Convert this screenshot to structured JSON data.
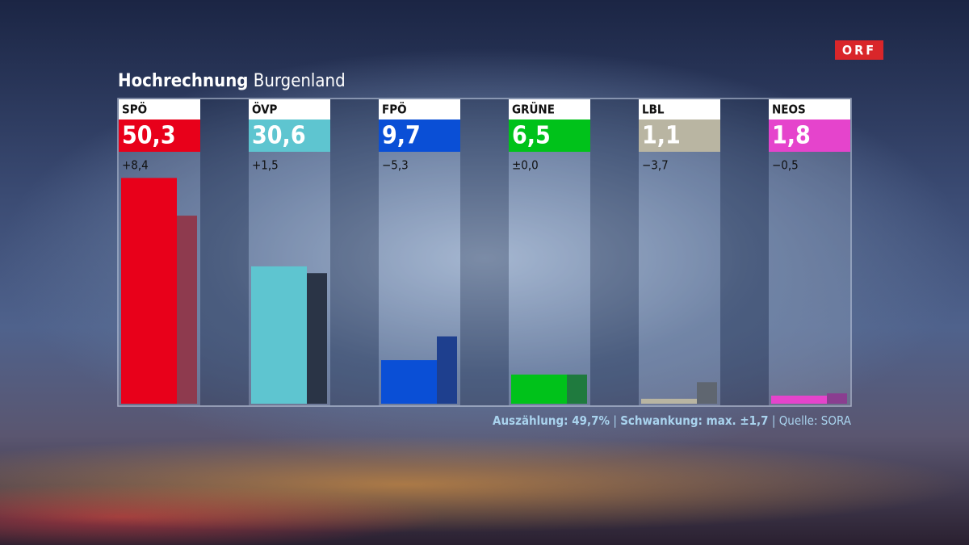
{
  "chart_data": {
    "type": "bar",
    "title": "Hochrechnung",
    "subtitle": "Burgenland",
    "logo": "ORF",
    "categories": [
      "SPÖ",
      "ÖVP",
      "FPÖ",
      "GRÜNE",
      "LBL",
      "NEOS"
    ],
    "values": [
      50.3,
      30.6,
      9.7,
      6.5,
      1.1,
      1.8
    ],
    "value_labels": [
      "50,3",
      "30,6",
      "9,7",
      "6,5",
      "1,1",
      "1,8"
    ],
    "previous_values": [
      41.9,
      29.1,
      15.0,
      6.5,
      4.8,
      2.3
    ],
    "change_labels": [
      "+8,4",
      "+1,5",
      "−5,3",
      "±0,0",
      "−3,7",
      "−0,5"
    ],
    "colors": [
      "#e8001a",
      "#5ec5d0",
      "#0a4fd6",
      "#00c21a",
      "#b9b5a2",
      "#e544cc"
    ],
    "previous_colors": [
      "#8e3a4e",
      "#2a3446",
      "#1e3f8e",
      "#1f7a3e",
      "#5f6670",
      "#8a3e90"
    ],
    "ylim": [
      0,
      68
    ],
    "footer": {
      "counted": "Auszählung: 49,7%",
      "margin": "Schwankung: max. ±1,7",
      "source": "Quelle: SORA"
    }
  }
}
